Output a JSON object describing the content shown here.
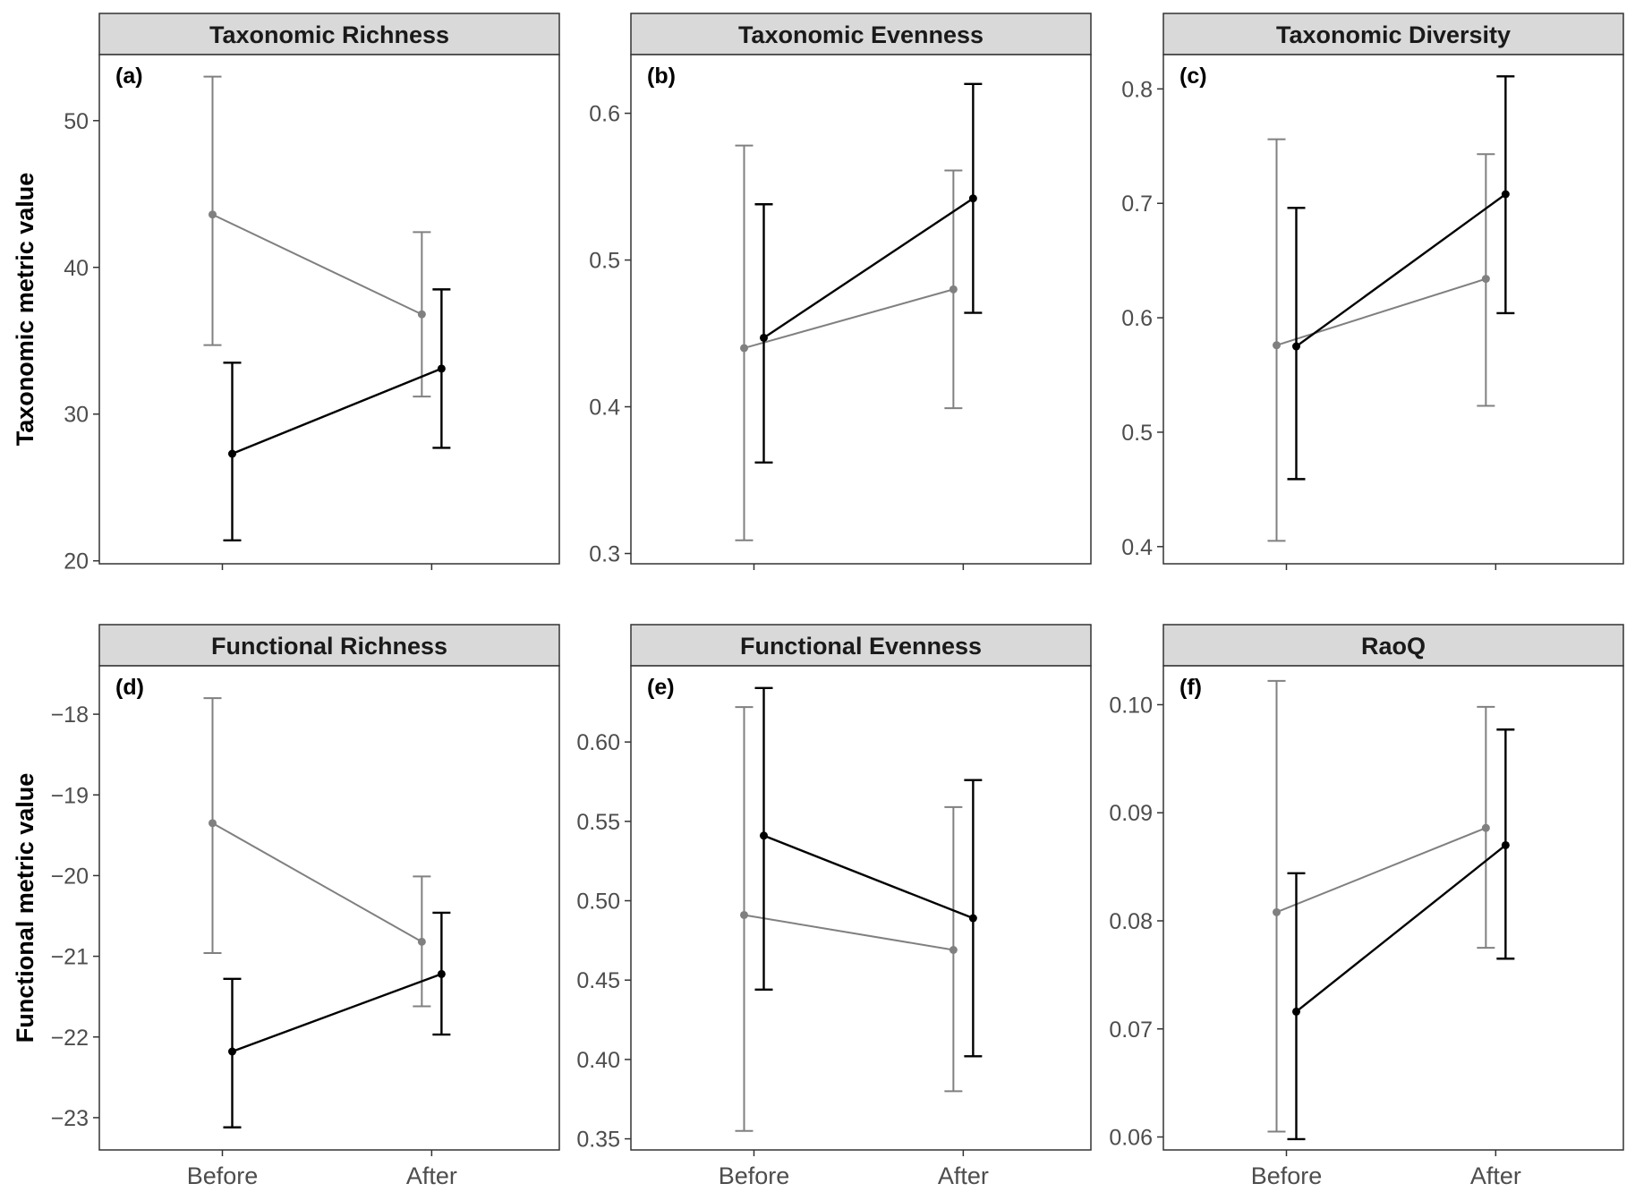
{
  "chart_data": [
    {
      "type": "line",
      "panel_tag": "(a)",
      "title": "Taxonomic Richness",
      "categories": [
        "Before",
        "After"
      ],
      "ylabel": "Taxonomic metric value",
      "ylim": [
        19.8,
        54.5
      ],
      "yticks": [
        20,
        30,
        40,
        50
      ],
      "ytick_labels": [
        "20",
        "30",
        "40",
        "50"
      ],
      "series": [
        {
          "name": "grey",
          "color": "#808080",
          "values": [
            43.6,
            36.8
          ],
          "lower": [
            34.7,
            31.2
          ],
          "upper": [
            53.0,
            42.4
          ]
        },
        {
          "name": "black",
          "color": "#000000",
          "values": [
            27.3,
            33.1
          ],
          "lower": [
            21.4,
            27.7
          ],
          "upper": [
            33.5,
            38.5
          ]
        }
      ]
    },
    {
      "type": "line",
      "panel_tag": "(b)",
      "title": "Taxonomic Evenness",
      "categories": [
        "Before",
        "After"
      ],
      "ylabel": "",
      "ylim": [
        0.293,
        0.64
      ],
      "yticks": [
        0.3,
        0.4,
        0.5,
        0.6
      ],
      "ytick_labels": [
        "0.3",
        "0.4",
        "0.5",
        "0.6"
      ],
      "series": [
        {
          "name": "grey",
          "color": "#808080",
          "values": [
            0.44,
            0.48
          ],
          "lower": [
            0.309,
            0.399
          ],
          "upper": [
            0.578,
            0.561
          ]
        },
        {
          "name": "black",
          "color": "#000000",
          "values": [
            0.447,
            0.542
          ],
          "lower": [
            0.362,
            0.464
          ],
          "upper": [
            0.538,
            0.62
          ]
        }
      ]
    },
    {
      "type": "line",
      "panel_tag": "(c)",
      "title": "Taxonomic Diversity",
      "categories": [
        "Before",
        "After"
      ],
      "ylabel": "",
      "ylim": [
        0.385,
        0.83
      ],
      "yticks": [
        0.4,
        0.5,
        0.6,
        0.7,
        0.8
      ],
      "ytick_labels": [
        "0.4",
        "0.5",
        "0.6",
        "0.7",
        "0.8"
      ],
      "series": [
        {
          "name": "grey",
          "color": "#808080",
          "values": [
            0.576,
            0.634
          ],
          "lower": [
            0.405,
            0.523
          ],
          "upper": [
            0.756,
            0.743
          ]
        },
        {
          "name": "black",
          "color": "#000000",
          "values": [
            0.575,
            0.708
          ],
          "lower": [
            0.459,
            0.604
          ],
          "upper": [
            0.696,
            0.811
          ]
        }
      ]
    },
    {
      "type": "line",
      "panel_tag": "(d)",
      "title": "Functional Richness",
      "categories": [
        "Before",
        "After"
      ],
      "ylabel": "Functional metric value",
      "ylim": [
        -23.4,
        -17.4
      ],
      "yticks": [
        -23,
        -22,
        -21,
        -20,
        -19,
        -18
      ],
      "ytick_labels": [
        "−23",
        "−22",
        "−21",
        "−20",
        "−19",
        "−18"
      ],
      "series": [
        {
          "name": "grey",
          "color": "#808080",
          "values": [
            -19.35,
            -20.82
          ],
          "lower": [
            -20.96,
            -21.62
          ],
          "upper": [
            -17.8,
            -20.01
          ]
        },
        {
          "name": "black",
          "color": "#000000",
          "values": [
            -22.18,
            -21.22
          ],
          "lower": [
            -23.12,
            -21.97
          ],
          "upper": [
            -21.28,
            -20.46
          ]
        }
      ]
    },
    {
      "type": "line",
      "panel_tag": "(e)",
      "title": "Functional Evenness",
      "categories": [
        "Before",
        "After"
      ],
      "ylabel": "",
      "ylim": [
        0.343,
        0.648
      ],
      "yticks": [
        0.35,
        0.4,
        0.45,
        0.5,
        0.55,
        0.6
      ],
      "ytick_labels": [
        "0.35",
        "0.40",
        "0.45",
        "0.50",
        "0.55",
        "0.60"
      ],
      "series": [
        {
          "name": "grey",
          "color": "#808080",
          "values": [
            0.491,
            0.469
          ],
          "lower": [
            0.355,
            0.38
          ],
          "upper": [
            0.622,
            0.559
          ]
        },
        {
          "name": "black",
          "color": "#000000",
          "values": [
            0.541,
            0.489
          ],
          "lower": [
            0.444,
            0.402
          ],
          "upper": [
            0.634,
            0.576
          ]
        }
      ]
    },
    {
      "type": "line",
      "panel_tag": "(f)",
      "title": "RaoQ",
      "categories": [
        "Before",
        "After"
      ],
      "ylabel": "",
      "ylim": [
        0.0588,
        0.1036
      ],
      "yticks": [
        0.06,
        0.07,
        0.08,
        0.09,
        0.1
      ],
      "ytick_labels": [
        "0.06",
        "0.07",
        "0.08",
        "0.09",
        "0.10"
      ],
      "series": [
        {
          "name": "grey",
          "color": "#808080",
          "values": [
            0.0808,
            0.0886
          ],
          "lower": [
            0.0605,
            0.0775
          ],
          "upper": [
            0.1022,
            0.0998
          ]
        },
        {
          "name": "black",
          "color": "#000000",
          "values": [
            0.0716,
            0.087
          ],
          "lower": [
            0.0598,
            0.0765
          ],
          "upper": [
            0.0844,
            0.0977
          ]
        }
      ]
    }
  ]
}
